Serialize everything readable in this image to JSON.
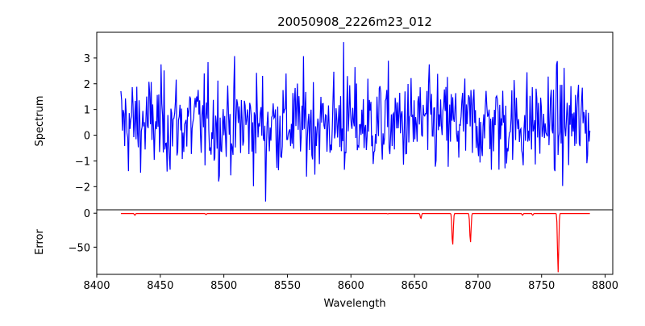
{
  "chart_data": [
    {
      "type": "line",
      "title": "20050908_2226m23_012",
      "xlabel": "",
      "ylabel": "Spectrum",
      "xlim": [
        8400,
        8806
      ],
      "ylim": [
        -2.9,
        4.0
      ],
      "yticks": [
        -2,
        -1,
        0,
        1,
        2,
        3
      ],
      "xticks_shown": false,
      "series": [
        {
          "color": "#0000ff",
          "description_kind": "noisy spectrum fluctuating around ~0.5 with amplitude roughly -2.6 to 3.6",
          "x_range": [
            8419,
            8788
          ],
          "n_points": 620,
          "mean": 0.45,
          "std": 0.95,
          "max": {
            "x": 8594,
            "y": 3.62
          },
          "min": {
            "x": 8533,
            "y": -2.58
          }
        }
      ]
    },
    {
      "type": "line",
      "xlabel": "Wavelength",
      "ylabel": "Error",
      "xlim": [
        8400,
        8806
      ],
      "ylim": [
        -90,
        5
      ],
      "yticks": [
        0,
        -50
      ],
      "xticks": [
        8400,
        8450,
        8500,
        8550,
        8600,
        8650,
        8700,
        8750,
        8800
      ],
      "series": [
        {
          "color": "#ff0000",
          "baseline": -0.5,
          "x_range": [
            8419,
            8788
          ],
          "dips": [
            {
              "x": 8430,
              "y": -3
            },
            {
              "x": 8486,
              "y": -2
            },
            {
              "x": 8629,
              "y": -1
            },
            {
              "x": 8655,
              "y": -8
            },
            {
              "x": 8680,
              "y": -48
            },
            {
              "x": 8694,
              "y": -44
            },
            {
              "x": 8735,
              "y": -3
            },
            {
              "x": 8743,
              "y": -3
            },
            {
              "x": 8763,
              "y": -87
            }
          ]
        }
      ]
    }
  ]
}
